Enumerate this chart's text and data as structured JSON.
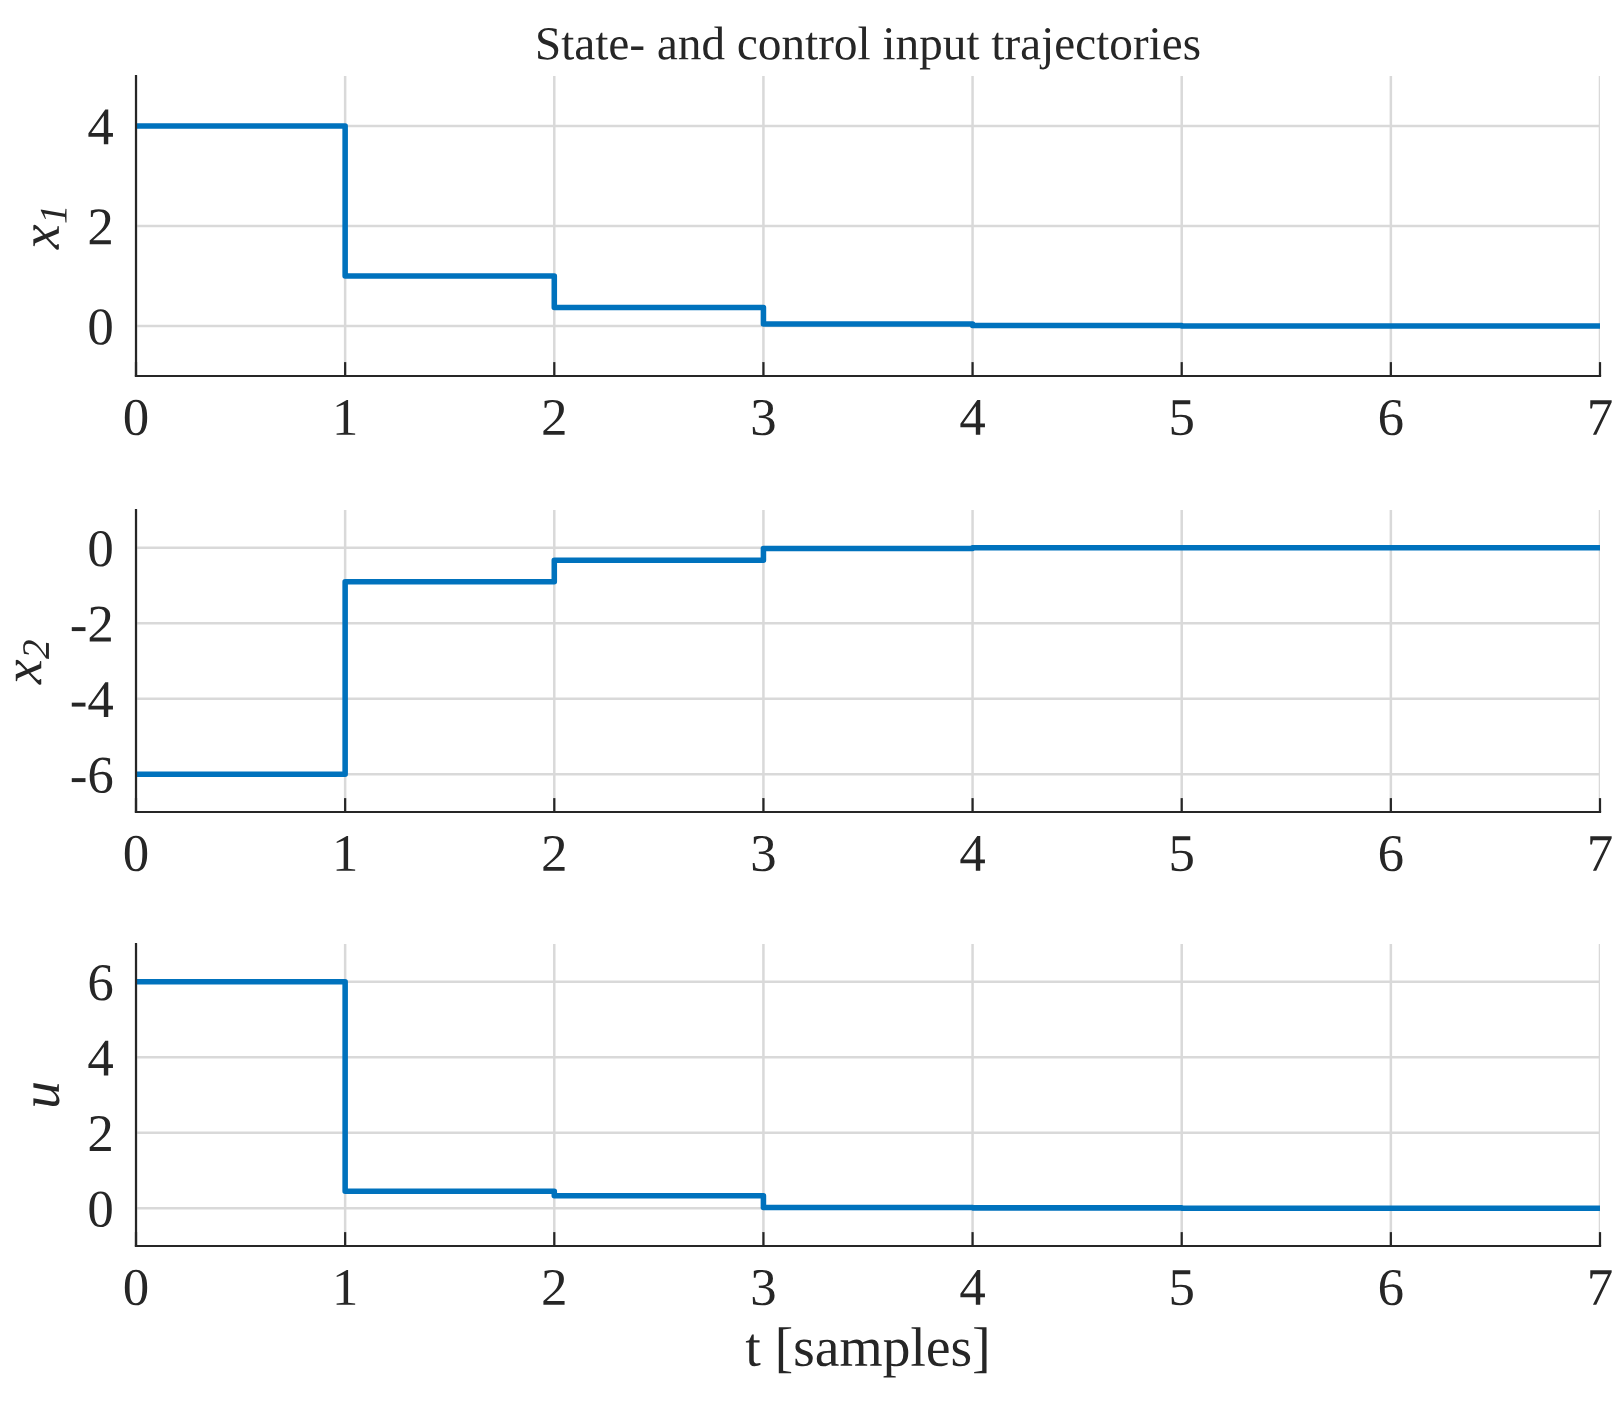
{
  "chart_data": [
    {
      "type": "step",
      "title": "State- and control input trajectories",
      "ylabel": "x$_{1}$",
      "x": [
        0,
        1,
        2,
        3,
        4,
        5,
        6,
        7
      ],
      "values": [
        4,
        1,
        0.37,
        0.04,
        0.01,
        0,
        0,
        0
      ],
      "color": "#0072bd",
      "xlim": [
        0,
        7
      ],
      "xticks": [
        0,
        1,
        2,
        3,
        4,
        5,
        6,
        7
      ],
      "ylim": [
        -1,
        5
      ],
      "yticks": [
        0,
        2,
        4
      ],
      "grid": true
    },
    {
      "type": "step",
      "ylabel": "x$_{2}$",
      "x": [
        0,
        1,
        2,
        3,
        4,
        5,
        6,
        7
      ],
      "values": [
        -6,
        -0.9,
        -0.33,
        -0.02,
        0,
        0,
        0,
        0
      ],
      "color": "#0072bd",
      "xlim": [
        0,
        7
      ],
      "xticks": [
        0,
        1,
        2,
        3,
        4,
        5,
        6,
        7
      ],
      "ylim": [
        -7,
        1
      ],
      "yticks": [
        {
          "value": -6,
          "label": "-6"
        },
        {
          "value": -4,
          "label": "-4"
        },
        {
          "value": -2,
          "label": "-2"
        },
        0
      ],
      "grid": true
    },
    {
      "type": "step",
      "ylabel": "u",
      "xlabel": "t [samples]",
      "x": [
        0,
        1,
        2,
        3,
        4,
        5,
        6,
        7
      ],
      "values": [
        6,
        0.45,
        0.33,
        0.02,
        0.01,
        0,
        0,
        0
      ],
      "color": "#0072bd",
      "xlim": [
        0,
        7
      ],
      "xticks": [
        0,
        1,
        2,
        3,
        4,
        5,
        6,
        7
      ],
      "ylim": [
        -1,
        7
      ],
      "yticks": [
        0,
        2,
        4,
        6
      ],
      "grid": true
    }
  ]
}
